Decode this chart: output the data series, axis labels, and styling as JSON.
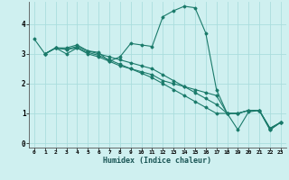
{
  "xlabel": "Humidex (Indice chaleur)",
  "background_color": "#cff0f0",
  "grid_color": "#aadddd",
  "line_color": "#1a7a6a",
  "xlim": [
    -0.5,
    23.5
  ],
  "ylim": [
    -0.15,
    4.75
  ],
  "xticks": [
    0,
    1,
    2,
    3,
    4,
    5,
    6,
    7,
    8,
    9,
    10,
    11,
    12,
    13,
    14,
    15,
    16,
    17,
    18,
    19,
    20,
    21,
    22,
    23
  ],
  "yticks": [
    0,
    1,
    2,
    3,
    4
  ],
  "series": [
    {
      "x": [
        0,
        1,
        2,
        3,
        4,
        5,
        6,
        7,
        8,
        9,
        10,
        11,
        12,
        13,
        14,
        15,
        16,
        17,
        18,
        19,
        20,
        21,
        22,
        23
      ],
      "y": [
        3.5,
        3.0,
        3.2,
        3.2,
        3.3,
        3.1,
        3.05,
        2.75,
        2.9,
        3.35,
        3.3,
        3.25,
        4.25,
        4.45,
        4.6,
        4.55,
        3.7,
        1.8,
        1.0,
        0.45,
        1.05,
        1.1,
        0.45,
        0.7
      ]
    },
    {
      "x": [
        1,
        2,
        3,
        4,
        5,
        6,
        7,
        8,
        9,
        10,
        11,
        12,
        13,
        14,
        15,
        16,
        17,
        18,
        19,
        20,
        21,
        22,
        23
      ],
      "y": [
        3.0,
        3.2,
        3.0,
        3.2,
        3.0,
        2.9,
        2.75,
        2.6,
        2.5,
        2.4,
        2.3,
        2.1,
        2.0,
        1.9,
        1.8,
        1.7,
        1.6,
        1.0,
        1.0,
        1.1,
        1.1,
        0.45,
        0.7
      ]
    },
    {
      "x": [
        1,
        2,
        3,
        4,
        5,
        6,
        7,
        8,
        9,
        10,
        11,
        12,
        13,
        14,
        15,
        16,
        17,
        18,
        19,
        20,
        21,
        22,
        23
      ],
      "y": [
        3.0,
        3.2,
        3.15,
        3.25,
        3.1,
        3.0,
        2.9,
        2.8,
        2.7,
        2.6,
        2.5,
        2.3,
        2.1,
        1.9,
        1.7,
        1.5,
        1.3,
        1.0,
        1.0,
        1.1,
        1.1,
        0.5,
        0.7
      ]
    },
    {
      "x": [
        1,
        2,
        3,
        4,
        5,
        6,
        7,
        8,
        9,
        10,
        11,
        12,
        13,
        14,
        15,
        16,
        17,
        18,
        19,
        20,
        21,
        22,
        23
      ],
      "y": [
        3.0,
        3.2,
        3.15,
        3.2,
        3.05,
        2.95,
        2.8,
        2.65,
        2.5,
        2.35,
        2.2,
        2.0,
        1.8,
        1.6,
        1.4,
        1.2,
        1.0,
        1.0,
        1.0,
        1.1,
        1.1,
        0.5,
        0.7
      ]
    }
  ]
}
